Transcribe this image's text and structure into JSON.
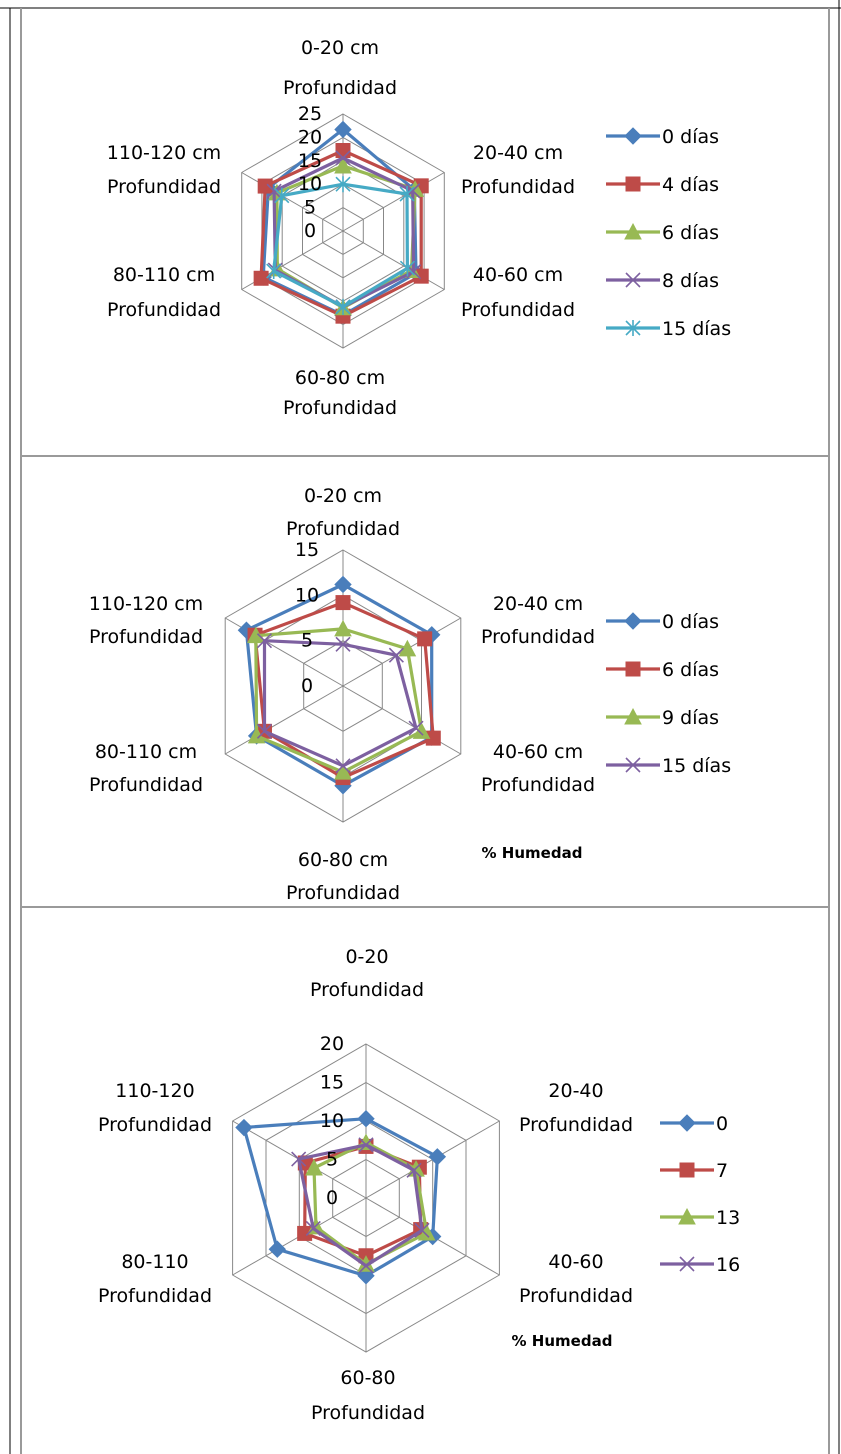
{
  "chart_data": [
    {
      "type": "radar",
      "categories": [
        "0-20 cm Profundidad",
        "20-40 cm Profundidad",
        "40-60 cm Profundidad",
        "60-80 cm Profundidad",
        "80-110 cm Profundidad",
        "110-120 cm Profundidad"
      ],
      "rticks": [
        "0",
        "5",
        "10",
        "15",
        "20",
        "25"
      ],
      "rlim": [
        0,
        25
      ],
      "grid": true,
      "legend_position": "right",
      "series": [
        {
          "name": "0 días",
          "color": "#4a7ebb",
          "marker": "diamond",
          "values": [
            21.7,
            17.6,
            18.0,
            18.0,
            19.7,
            18.4
          ]
        },
        {
          "name": "4 días",
          "color": "#be4b48",
          "marker": "square",
          "values": [
            17.2,
            19.3,
            19.3,
            18.2,
            20.2,
            19.2
          ]
        },
        {
          "name": "6 días",
          "color": "#98b954",
          "marker": "triangle",
          "values": [
            13.9,
            17.8,
            16.9,
            16.4,
            16.2,
            16.3
          ]
        },
        {
          "name": "8 días",
          "color": "#7d60a0",
          "marker": "x",
          "values": [
            15.6,
            17.2,
            17.4,
            16.2,
            16.7,
            17.0
          ]
        },
        {
          "name": "15 días",
          "color": "#46aac5",
          "marker": "star",
          "values": [
            10.0,
            15.8,
            15.9,
            16.2,
            17.1,
            15.1
          ]
        }
      ]
    },
    {
      "type": "radar",
      "categories": [
        "0-20 cm Profundidad",
        "20-40 cm Profundidad",
        "40-60 cm Profundidad",
        "60-80 cm Profundidad",
        "80-110 cm Profundidad",
        "110-120 cm Profundidad"
      ],
      "rticks": [
        "0",
        "5",
        "10",
        "15"
      ],
      "rlim": [
        0,
        15
      ],
      "grid": true,
      "legend_position": "right",
      "annotation": "% Humedad",
      "series": [
        {
          "name": "0 días",
          "color": "#4a7ebb",
          "marker": "diamond",
          "values": [
            11.2,
            11.3,
            11.3,
            11.0,
            11.0,
            12.3
          ]
        },
        {
          "name": "6 días",
          "color": "#be4b48",
          "marker": "square",
          "values": [
            9.2,
            10.4,
            11.5,
            10.1,
            10.0,
            11.2
          ]
        },
        {
          "name": "9 días",
          "color": "#98b954",
          "marker": "triangle",
          "values": [
            6.3,
            8.2,
            10.0,
            9.5,
            11.0,
            11.1
          ]
        },
        {
          "name": "15 días",
          "color": "#7d60a0",
          "marker": "x",
          "values": [
            4.6,
            6.8,
            9.3,
            8.8,
            10.0,
            10.0
          ]
        }
      ]
    },
    {
      "type": "radar",
      "categories": [
        "0-20 Profundidad",
        "20-40 Profundidad",
        "40-60 Profundidad",
        "60-80 Profundidad",
        "80-110 Profundidad",
        "110-120 Profundidad"
      ],
      "rticks": [
        "0",
        "5",
        "10",
        "15",
        "20"
      ],
      "rlim": [
        0,
        20
      ],
      "grid": true,
      "legend_position": "right",
      "annotation": "% Humedad",
      "series": [
        {
          "name": "0",
          "color": "#4a7ebb",
          "marker": "diamond",
          "values": [
            10.3,
            10.7,
            10.0,
            10.1,
            13.3,
            18.3
          ]
        },
        {
          "name": "7",
          "color": "#be4b48",
          "marker": "square",
          "values": [
            6.7,
            8.0,
            8.2,
            7.5,
            9.2,
            9.1
          ]
        },
        {
          "name": "13",
          "color": "#98b954",
          "marker": "triangle",
          "values": [
            7.2,
            7.5,
            9.1,
            8.6,
            7.5,
            7.8
          ]
        },
        {
          "name": "16",
          "color": "#7d60a0",
          "marker": "x",
          "values": [
            6.9,
            7.2,
            8.4,
            8.8,
            7.9,
            10.1
          ]
        }
      ]
    }
  ]
}
